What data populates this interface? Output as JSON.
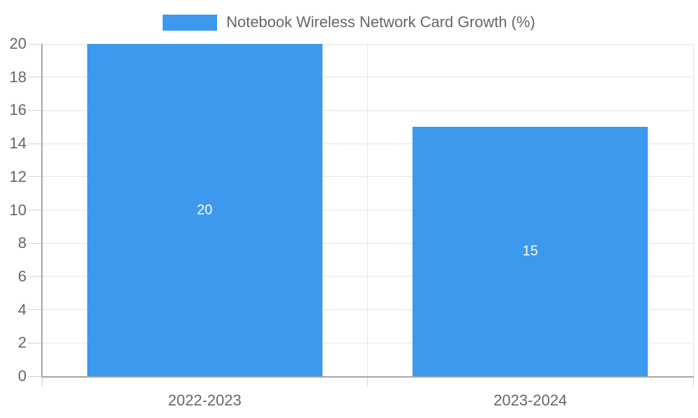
{
  "legend": {
    "label": "Notebook Wireless Network Card Growth (%)"
  },
  "chart_data": {
    "type": "bar",
    "title": "",
    "series_name": "Notebook Wireless Network Card Growth (%)",
    "categories": [
      "2022-2023",
      "2023-2024"
    ],
    "values": [
      20,
      15
    ],
    "data_labels": [
      "20",
      "15"
    ],
    "xlabel": "",
    "ylabel": "",
    "ylim": [
      0,
      20
    ],
    "ytick_step": 2,
    "ytick_labels": [
      "0",
      "2",
      "4",
      "6",
      "8",
      "10",
      "12",
      "14",
      "16",
      "18",
      "20"
    ],
    "grid": true,
    "legend_position": "top-center",
    "colors": {
      "bar": "#3d99ee",
      "bar_value_label": "#ffffff",
      "axis_text": "#666666",
      "axis_line": "#a5a5a5",
      "gridline": "#e5e5e5",
      "tick": "#d4d4d4",
      "background": "#ffffff"
    }
  }
}
